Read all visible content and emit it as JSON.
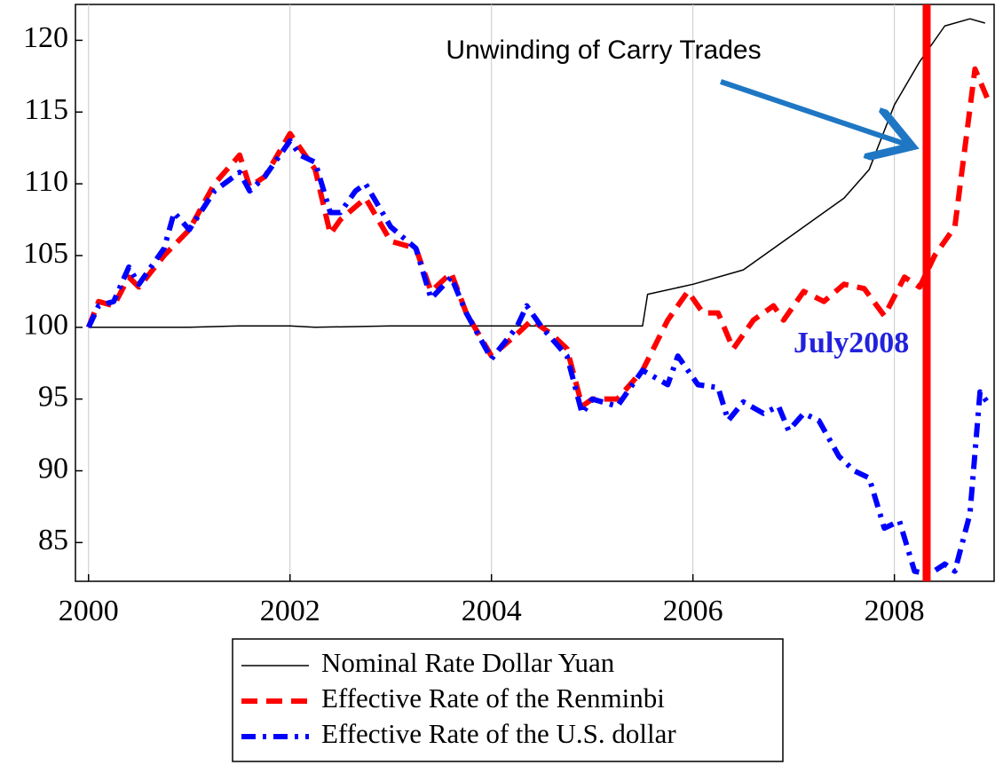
{
  "chart_data": {
    "type": "line",
    "xlim": [
      1999.87,
      2008.99
    ],
    "ylim": [
      82.3,
      122.5
    ],
    "xticks": [
      2000,
      2002,
      2004,
      2006,
      2008
    ],
    "yticks": [
      85,
      90,
      95,
      100,
      105,
      110,
      115,
      120
    ],
    "grid": true,
    "series": [
      {
        "name": "Nominal Rate Dollar Yuan",
        "color": "#000000",
        "x": [
          2000,
          2001,
          2001.5,
          2002,
          2002.25,
          2003,
          2004,
          2005,
          2005.5,
          2005.55,
          2006,
          2006.5,
          2007,
          2007.5,
          2007.75,
          2008,
          2008.25,
          2008.5,
          2008.75,
          2008.9
        ],
        "values": [
          100,
          100,
          100.1,
          100.1,
          100,
          100.1,
          100.1,
          100.1,
          100.1,
          102.3,
          103,
          104,
          106.5,
          109,
          111,
          115.5,
          118.5,
          121,
          121.5,
          121.2
        ]
      },
      {
        "name": "Effective Rate of the Renminbi",
        "color": "#ff0000",
        "x": [
          2000,
          2000.1,
          2000.25,
          2000.4,
          2000.5,
          2000.75,
          2001,
          2001.25,
          2001.5,
          2001.6,
          2001.75,
          2002,
          2002.25,
          2002.4,
          2002.5,
          2002.75,
          2003,
          2003.25,
          2003.4,
          2003.6,
          2003.75,
          2004,
          2004.25,
          2004.4,
          2004.6,
          2004.75,
          2004.9,
          2005,
          2005.25,
          2005.5,
          2005.75,
          2005.95,
          2006.1,
          2006.25,
          2006.4,
          2006.6,
          2006.8,
          2006.9,
          2007.1,
          2007.3,
          2007.5,
          2007.7,
          2007.9,
          2008.1,
          2008.25,
          2008.4,
          2008.6,
          2008.8,
          2008.92
        ],
        "values": [
          100,
          101.8,
          101.5,
          103.5,
          102.8,
          105,
          106.8,
          110,
          112,
          109.8,
          110.5,
          113.5,
          111,
          106.5,
          107.5,
          109,
          106,
          105.5,
          102.5,
          103.8,
          101,
          98,
          99.5,
          100.5,
          99.5,
          98.5,
          94.5,
          95,
          95,
          97,
          100.5,
          102.5,
          101,
          101,
          98.5,
          100.5,
          101.5,
          100.5,
          102.5,
          101.8,
          103,
          102.7,
          100.8,
          103.5,
          102.8,
          105,
          107,
          118,
          116
        ]
      },
      {
        "name": "Effective Rate of the U.S. dollar",
        "color": "#0000ff",
        "x": [
          2000,
          2000.1,
          2000.25,
          2000.4,
          2000.5,
          2000.75,
          2000.85,
          2001,
          2001.25,
          2001.5,
          2001.6,
          2001.75,
          2002,
          2002.1,
          2002.25,
          2002.4,
          2002.5,
          2002.65,
          2002.75,
          2003,
          2003.25,
          2003.4,
          2003.6,
          2003.75,
          2004,
          2004.25,
          2004.35,
          2004.5,
          2004.75,
          2004.9,
          2005,
          2005.25,
          2005.5,
          2005.75,
          2005.85,
          2006.05,
          2006.25,
          2006.35,
          2006.5,
          2006.7,
          2006.85,
          2006.95,
          2007.1,
          2007.25,
          2007.45,
          2007.6,
          2007.75,
          2007.9,
          2008.05,
          2008.2,
          2008.35,
          2008.5,
          2008.6,
          2008.75,
          2008.85,
          2008.95
        ],
        "values": [
          100,
          101.5,
          101.8,
          104.2,
          103,
          105.5,
          108,
          106.8,
          109.5,
          110.8,
          109.5,
          110.5,
          113,
          112,
          111.5,
          108,
          108,
          109.5,
          110,
          107,
          105.5,
          102,
          103.5,
          101,
          97.8,
          100,
          101.5,
          100,
          98,
          94,
          95,
          94.5,
          97,
          96,
          98,
          96,
          95.8,
          93.5,
          94.8,
          94,
          94.5,
          92.8,
          94,
          93.5,
          91,
          90,
          89.5,
          86,
          86.5,
          83,
          82.8,
          83.5,
          83,
          87,
          95.5,
          94.5
        ]
      }
    ],
    "vline": {
      "x": 2008.32,
      "color": "#ff0000",
      "label": "July2008",
      "label_color": "#2222dd"
    },
    "annotation": "Unwinding of Carry Trades"
  }
}
